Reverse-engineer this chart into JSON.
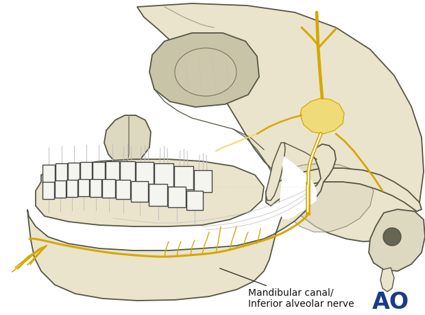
{
  "bg_color": "#ffffff",
  "skull_fill": "#eae4cc",
  "skull_fill2": "#ddd8c0",
  "skull_fill3": "#d0c9ad",
  "skull_outline": "#555544",
  "nerve_color": "#d4a800",
  "nerve_light": "#f0dc70",
  "ghost_color": "#c0c0c0",
  "ghost_color2": "#d8d4c0",
  "tooth_fill": "#f5f5f0",
  "tooth_outline": "#444444",
  "eye_fill": "#c8c4a8",
  "dark_circle": "#666655",
  "label_text": "Mandibular canal/\nInferior alveolar nerve",
  "label_fontsize": 10,
  "ao_color": "#1a3a8c",
  "ao_fontsize": 24,
  "figsize": [
    6.2,
    4.59
  ],
  "dpi": 100
}
